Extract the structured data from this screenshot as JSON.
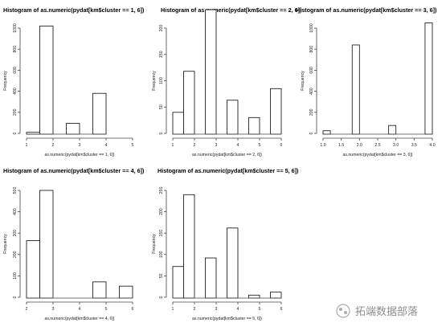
{
  "chart_data": [
    {
      "type": "bar",
      "title": "Histogram of as.numeric(pydat[km$cluster == 1, 6])",
      "xlabel": "as.numeric(pydat[km$cluster == 1, 6])",
      "ylabel": "Frequency",
      "bins": [
        [
          1.0,
          1.5,
          10
        ],
        [
          1.5,
          2.0,
          1020
        ],
        [
          2.5,
          3.0,
          95
        ],
        [
          3.5,
          4.0,
          380
        ]
      ],
      "xlim": [
        1,
        5
      ],
      "ylim": [
        0,
        1000
      ],
      "xticks": [
        1,
        2,
        3,
        4,
        5
      ],
      "yticks": [
        0,
        200,
        400,
        600,
        800,
        1000
      ]
    },
    {
      "type": "bar",
      "title": "Histogram of as.numeric(pydat[km$cluster == 2, 6])",
      "xlabel": "as.numeric(pydat[km$cluster == 2, 6])",
      "ylabel": "Frequency",
      "bins": [
        [
          1.0,
          1.5,
          40
        ],
        [
          1.5,
          2.0,
          118
        ],
        [
          2.5,
          3.0,
          235
        ],
        [
          3.5,
          4.0,
          63
        ],
        [
          4.5,
          5.0,
          30
        ],
        [
          5.5,
          6.0,
          85
        ]
      ],
      "xlim": [
        1,
        6
      ],
      "ylim": [
        0,
        200
      ],
      "xticks": [
        1,
        2,
        3,
        4,
        5,
        6
      ],
      "yticks": [
        0,
        50,
        100,
        150,
        200
      ]
    },
    {
      "type": "bar",
      "title": "Histogram of as.numeric(pydat[km$cluster == 3, 6])",
      "xlabel": "as.numeric(pydat[km$cluster == 3, 6])",
      "ylabel": "Frequency",
      "bins": [
        [
          1.0,
          1.2,
          25
        ],
        [
          1.8,
          2.0,
          840
        ],
        [
          2.8,
          3.0,
          75
        ],
        [
          3.8,
          4.0,
          1050
        ]
      ],
      "xlim": [
        1,
        4
      ],
      "ylim": [
        0,
        1000
      ],
      "xticks": [
        1.0,
        1.5,
        2.0,
        2.5,
        3.0,
        3.5,
        4.0
      ],
      "xticklabels": [
        "1.0",
        "1.5",
        "2.0",
        "2.5",
        "3.0",
        "3.5",
        "4.0"
      ],
      "yticks": [
        0,
        200,
        400,
        600,
        800,
        1000
      ]
    },
    {
      "type": "bar",
      "title": "Histogram of as.numeric(pydat[km$cluster == 4, 6])",
      "xlabel": "as.numeric(pydat[km$cluster == 4, 6])",
      "ylabel": "Frequency",
      "bins": [
        [
          2.0,
          2.5,
          265
        ],
        [
          2.5,
          3.0,
          500
        ],
        [
          4.5,
          5.0,
          72
        ],
        [
          5.5,
          6.0,
          52
        ]
      ],
      "xlim": [
        2,
        6
      ],
      "ylim": [
        0,
        500
      ],
      "xticks": [
        2,
        3,
        4,
        5,
        6
      ],
      "yticks": [
        0,
        100,
        200,
        300,
        400,
        500
      ]
    },
    {
      "type": "bar",
      "title": "Histogram of as.numeric(pydat[km$cluster == 5, 6])",
      "xlabel": "as.numeric(pydat[km$cluster == 5, 6])",
      "ylabel": "Frequency",
      "bins": [
        [
          1.0,
          1.5,
          72
        ],
        [
          1.5,
          2.0,
          240
        ],
        [
          2.5,
          3.0,
          92
        ],
        [
          3.5,
          4.0,
          162
        ],
        [
          4.5,
          5.0,
          5
        ],
        [
          5.5,
          6.0,
          12
        ]
      ],
      "xlim": [
        1,
        6
      ],
      "ylim": [
        0,
        250
      ],
      "xticks": [
        1,
        2,
        3,
        4,
        5,
        6
      ],
      "yticks": [
        0,
        50,
        100,
        150,
        200,
        250
      ]
    }
  ],
  "watermark": {
    "text": "拓端数据部落"
  }
}
